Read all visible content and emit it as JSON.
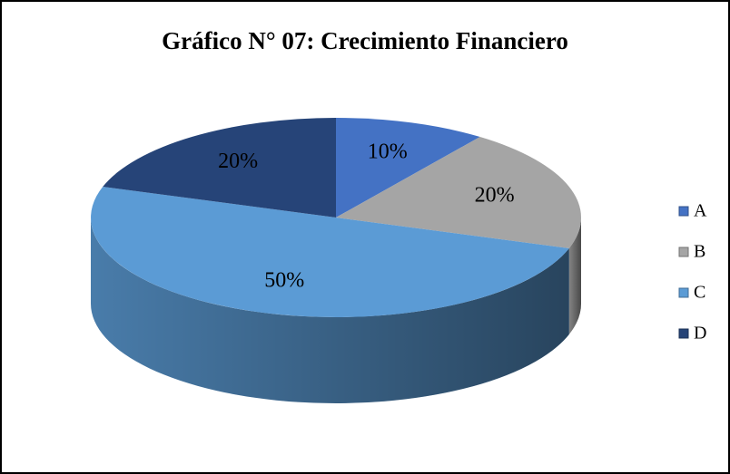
{
  "chart_data": {
    "type": "pie",
    "title": "Gráfico N° 07: Crecimiento Financiero",
    "categories": [
      "A",
      "B",
      "C",
      "D"
    ],
    "values": [
      10,
      20,
      50,
      20
    ],
    "value_labels": [
      "10%",
      "20%",
      "50%",
      "20%"
    ],
    "colors": [
      "#4472c4",
      "#a5a5a5",
      "#5b9bd5",
      "#264478"
    ],
    "legend": "right"
  }
}
